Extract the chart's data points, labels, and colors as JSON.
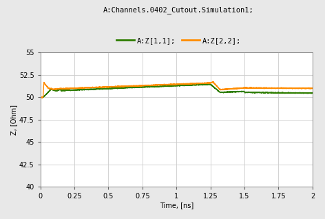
{
  "title_line1": "A:Channels.0402_Cutout.Simulation1;",
  "ylabel": "Z, [Ohm]",
  "xlabel": "Time, [ns]",
  "xlim": [
    0,
    2
  ],
  "ylim": [
    40,
    55
  ],
  "yticks": [
    40,
    42.5,
    45,
    47.5,
    50,
    52.5,
    55
  ],
  "xticks": [
    0,
    0.25,
    0.5,
    0.75,
    1,
    1.25,
    1.5,
    1.75,
    2
  ],
  "color_z11": "#2e7d00",
  "color_z22": "#ff8c00",
  "legend_z11": "A:Z[1,1];",
  "legend_z22": "A:Z[2,2];",
  "fig_bg_color": "#e8e8e8",
  "plot_bg_color": "#ffffff",
  "grid_color": "#cccccc",
  "linewidth": 1.0,
  "title_fontsize": 7.5,
  "legend_fontsize": 7.5,
  "tick_fontsize": 7,
  "label_fontsize": 7
}
